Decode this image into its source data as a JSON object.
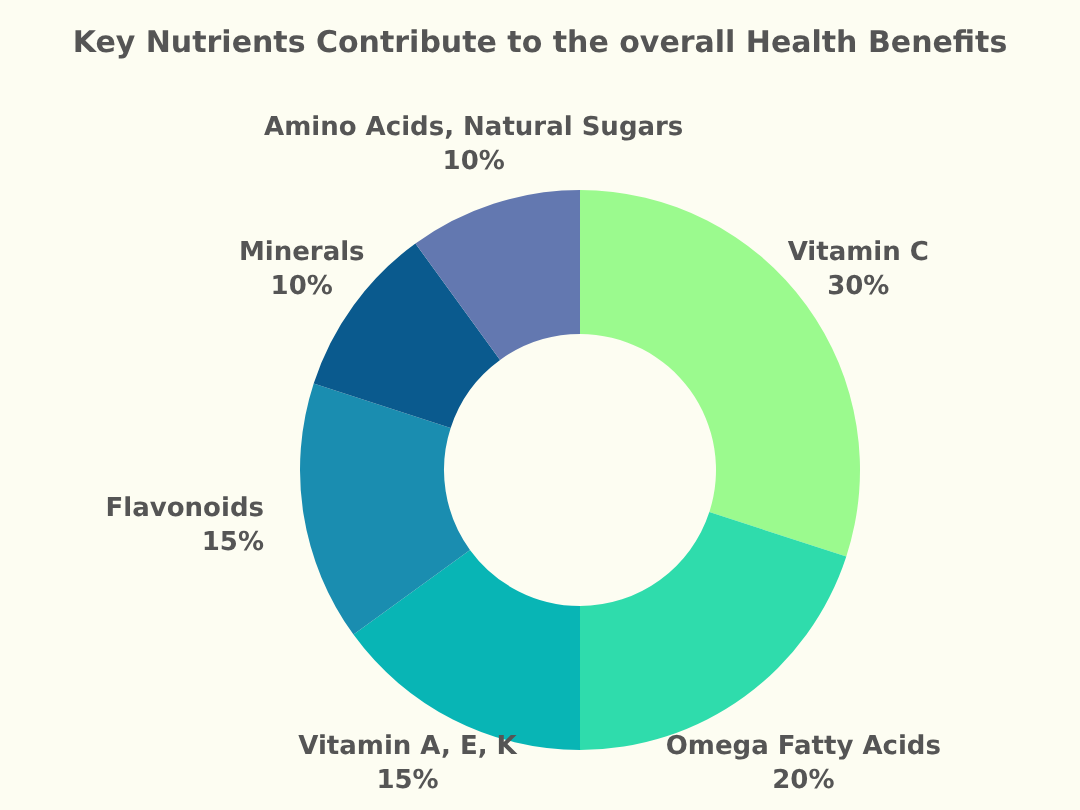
{
  "chart_data": {
    "type": "donut",
    "title": "Key Nutrients Contribute to the overall Health Benefits",
    "categories": [
      "Vitamin C",
      "Omega Fatty Acids",
      "Vitamin A, E, K",
      "Flavonoids",
      "Minerals",
      "Amino Acids, Natural Sugars"
    ],
    "values": [
      30,
      20,
      15,
      15,
      10,
      10
    ],
    "colors": [
      "#9bfa8e",
      "#2fdcac",
      "#08b5b5",
      "#1a8db0",
      "#0a5a8e",
      "#6378b0"
    ],
    "value_labels": [
      "30%",
      "20%",
      "15%",
      "15%",
      "10%",
      "10%"
    ]
  }
}
